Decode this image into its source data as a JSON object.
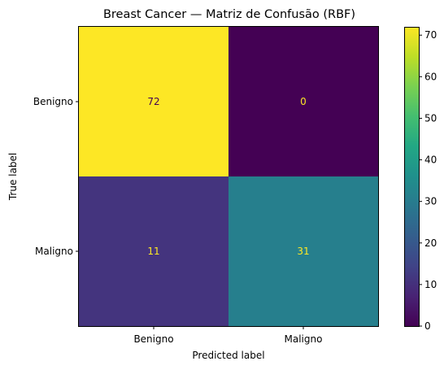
{
  "chart_data": {
    "type": "heatmap",
    "title": "Breast Cancer — Matriz de Confusão (RBF)",
    "xlabel": "Predicted label",
    "ylabel": "True label",
    "x_categories": [
      "Benigno",
      "Maligno"
    ],
    "y_categories": [
      "Benigno",
      "Maligno"
    ],
    "values": [
      [
        72,
        0
      ],
      [
        11,
        31
      ]
    ],
    "colormap": "viridis",
    "colorbar": {
      "range": [
        0,
        72
      ],
      "ticks": [
        0,
        10,
        20,
        30,
        40,
        50,
        60,
        70
      ]
    },
    "cell_text_colors": {
      "on_dark": "#fde725",
      "on_light": "#440154"
    }
  }
}
